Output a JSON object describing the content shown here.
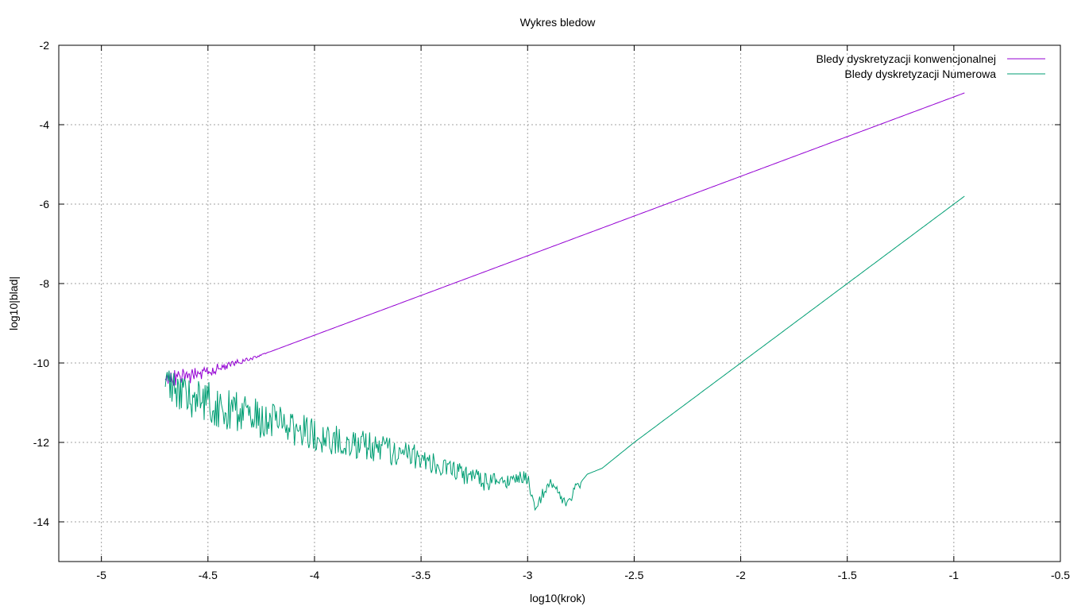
{
  "chart_data": {
    "type": "line",
    "title": "Wykres bledow",
    "xlabel": "log10(krok)",
    "ylabel": "log10|blad|",
    "xlim": [
      -5.2,
      -0.5
    ],
    "ylim": [
      -15,
      -2
    ],
    "x_ticks": [
      -5,
      -4.5,
      -4,
      -3.5,
      -3,
      -2.5,
      -2,
      -1.5,
      -1,
      -0.5
    ],
    "y_ticks": [
      -2,
      -4,
      -6,
      -8,
      -10,
      -12,
      -14
    ],
    "x_tick_labels": [
      "-5",
      "-4.5",
      "-4",
      "-3.5",
      "-3",
      "-2.5",
      "-2",
      "-1.5",
      "-1",
      "-0.5"
    ],
    "y_tick_labels": [
      "-2",
      "-4",
      "-6",
      "-8",
      "-10",
      "-12",
      "-14"
    ],
    "grid": true,
    "legend_position": "top-right",
    "series": [
      {
        "name": "Bledy dyskretyzacji konwencjonalnej",
        "color": "#9400d3",
        "x": [
          -0.95,
          -1.5,
          -2.0,
          -2.5,
          -3.0,
          -3.5,
          -4.0,
          -4.3,
          -4.5,
          -4.6,
          -4.7
        ],
        "y": [
          -3.2,
          -4.3,
          -5.3,
          -6.3,
          -7.3,
          -8.3,
          -9.3,
          -9.9,
          -10.2,
          -10.35,
          -10.4
        ]
      },
      {
        "name": "Bledy dyskretyzacji Numerowa",
        "color": "#009e73",
        "x": [
          -0.95,
          -1.5,
          -2.0,
          -2.5,
          -2.65,
          -2.72,
          -2.78,
          -2.82,
          -2.88,
          -2.93,
          -2.97,
          -3.0,
          -3.2,
          -3.5,
          -4.0,
          -4.5,
          -4.7
        ],
        "y": [
          -5.8,
          -8.0,
          -10.0,
          -12.0,
          -12.65,
          -12.8,
          -13.2,
          -13.6,
          -13.0,
          -13.3,
          -13.6,
          -12.9,
          -13.0,
          -12.4,
          -11.8,
          -11.0,
          -10.6
        ]
      }
    ]
  }
}
